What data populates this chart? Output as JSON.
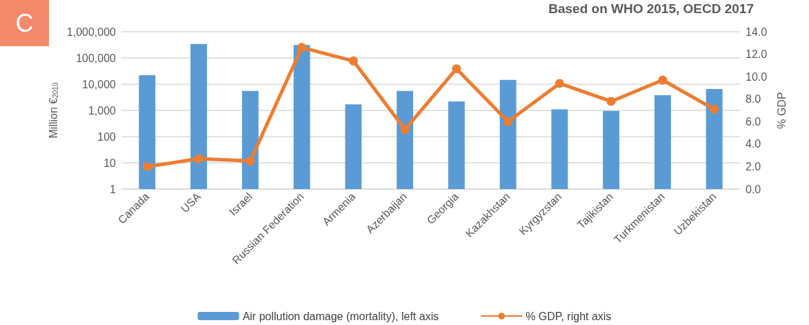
{
  "chart_data": {
    "type": "bar",
    "title": "Based on WHO 2015, OECD 2017",
    "annotations": [
      "C"
    ],
    "ylabel": "Million €$_{2010}$",
    "y2label": "% GDP",
    "categories": [
      "Canada",
      "USA",
      "Israel",
      "Russian Federation",
      "Armenia",
      "Azerbaijan",
      "Georgia",
      "Kazakhstan",
      "Kyrgyzstan",
      "Tajikistan",
      "Turkmenistan",
      "Uzbekistan"
    ],
    "series": [
      {
        "name": "Air pollution damage (mortality), left axis",
        "color": "#5b9bd5",
        "values": [
          22000,
          340000,
          5500,
          310000,
          1700,
          5500,
          2200,
          14500,
          1100,
          950,
          3800,
          6500
        ]
      },
      {
        "name": "% GDP, right axis",
        "type": "line",
        "axis": "y2",
        "color": "#ed7d31",
        "marker": "circle",
        "values": [
          2.0,
          2.7,
          2.5,
          12.6,
          11.4,
          5.3,
          10.7,
          6.0,
          9.4,
          7.8,
          9.7,
          7.1
        ]
      }
    ],
    "log": "y",
    "ylim": [
      1,
      1000000
    ],
    "yticks": [
      1,
      10,
      100,
      {
        "value": 1000,
        "label": "1,000"
      },
      {
        "value": 10000,
        "label": "10,000"
      },
      {
        "value": 100000,
        "label": "100,000"
      },
      {
        "value": 1000000,
        "label": "1,000,000"
      }
    ],
    "y2lim": [
      0,
      14
    ],
    "y2ticks": [
      {
        "value": 0,
        "label": "0.0"
      },
      {
        "value": 2,
        "label": "2.0"
      },
      {
        "value": 4,
        "label": "4.0"
      },
      {
        "value": 6,
        "label": "6.0"
      },
      {
        "value": 8,
        "label": "8.0"
      },
      {
        "value": 10,
        "label": "10.0"
      },
      {
        "value": 12,
        "label": "12.0"
      },
      {
        "value": 14,
        "label": "14.0"
      }
    ],
    "grid": "y",
    "legend": "bottom"
  }
}
